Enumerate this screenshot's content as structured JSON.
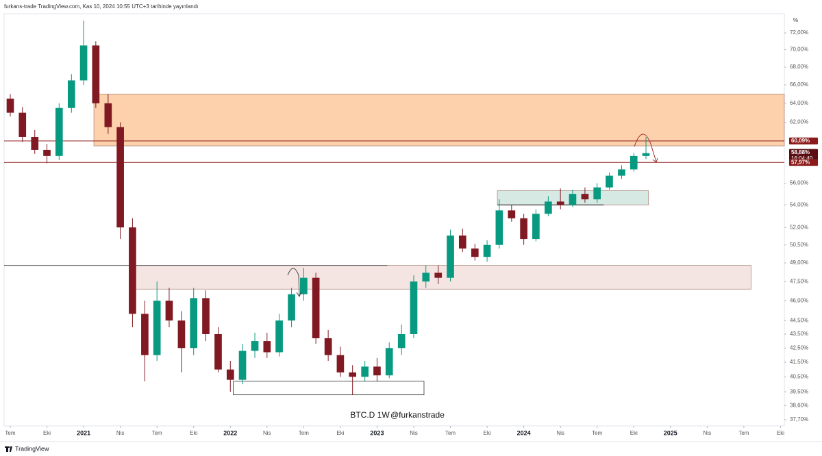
{
  "chart_data": {
    "type": "candlestick",
    "header": "furkans-trade TradingView.com, Kas 10, 2024 10:55 UTC+3 tarihinde yayınlandı",
    "title": "BTC.D 1W",
    "author": "@furkanstrade",
    "brand": "TradingView",
    "unit_label": "%",
    "log_scale": true,
    "grid": false,
    "up_color": "#089981",
    "down_color": "#801922",
    "xlim": [
      2020.458,
      2025.776
    ],
    "ylim": [
      37.31,
      74.35
    ],
    "xticks": [
      {
        "value": 2020.5,
        "label": "Tem"
      },
      {
        "value": 2020.75,
        "label": "Eki"
      },
      2021,
      {
        "value": 2021.25,
        "label": "Nis"
      },
      {
        "value": 2021.5,
        "label": "Tem"
      },
      {
        "value": 2021.75,
        "label": "Eki"
      },
      2022,
      {
        "value": 2022.25,
        "label": "Nis"
      },
      {
        "value": 2022.5,
        "label": "Tem"
      },
      {
        "value": 2022.75,
        "label": "Eki"
      },
      2023,
      {
        "value": 2023.25,
        "label": "Nis"
      },
      {
        "value": 2023.5,
        "label": "Tem"
      },
      {
        "value": 2023.75,
        "label": "Eki"
      },
      2024,
      {
        "value": 2024.25,
        "label": "Nis"
      },
      {
        "value": 2024.5,
        "label": "Tem"
      },
      {
        "value": 2024.75,
        "label": "Eki"
      },
      2025,
      {
        "value": 2025.25,
        "label": "Nis"
      },
      {
        "value": 2025.5,
        "label": "Tem"
      },
      {
        "value": 2025.75,
        "label": "Eki"
      }
    ],
    "yticks": [
      {
        "value": 72,
        "label": "72,00%"
      },
      {
        "value": 70,
        "label": "70,00%"
      },
      {
        "value": 68,
        "label": "68,00%"
      },
      {
        "value": 66,
        "label": "66,00%"
      },
      {
        "value": 64,
        "label": "64,00%"
      },
      {
        "value": 62,
        "label": "62,00%"
      },
      {
        "value": 56,
        "label": "56,00%"
      },
      {
        "value": 54,
        "label": "54,00%"
      },
      {
        "value": 52,
        "label": "52,00%"
      },
      {
        "value": 50.5,
        "label": "50,50%"
      },
      {
        "value": 49,
        "label": "49,00%"
      },
      {
        "value": 47.5,
        "label": "47,50%"
      },
      {
        "value": 46,
        "label": "46,00%"
      },
      {
        "value": 44.5,
        "label": "44,50%"
      },
      {
        "value": 43.5,
        "label": "43,50%"
      },
      {
        "value": 42.5,
        "label": "42,50%"
      },
      {
        "value": 41.5,
        "label": "41,50%"
      },
      {
        "value": 40.5,
        "label": "40,50%"
      },
      {
        "value": 39.5,
        "label": "39,50%"
      },
      {
        "value": 38.6,
        "label": "38,60%"
      },
      {
        "value": 37.7,
        "label": "37,70%"
      }
    ],
    "x": [
      2020.5,
      2020.583,
      2020.667,
      2020.75,
      2020.833,
      2020.917,
      2021.0,
      2021.083,
      2021.167,
      2021.25,
      2021.333,
      2021.417,
      2021.5,
      2021.583,
      2021.667,
      2021.75,
      2021.833,
      2021.917,
      2022.0,
      2022.083,
      2022.167,
      2022.25,
      2022.333,
      2022.417,
      2022.5,
      2022.583,
      2022.667,
      2022.75,
      2022.833,
      2022.917,
      2023.0,
      2023.083,
      2023.167,
      2023.25,
      2023.333,
      2023.417,
      2023.5,
      2023.583,
      2023.667,
      2023.75,
      2023.833,
      2023.917,
      2024.0,
      2024.083,
      2024.167,
      2024.25,
      2024.333,
      2024.417,
      2024.5,
      2024.583,
      2024.667,
      2024.75,
      2024.833
    ],
    "open": [
      64.5,
      63.0,
      60.5,
      59.2,
      58.6,
      63.5,
      66.5,
      70.5,
      64.0,
      61.5,
      52.0,
      45.0,
      42.0,
      46.0,
      44.5,
      42.5,
      46.2,
      43.5,
      41.0,
      40.3,
      42.3,
      43.0,
      42.2,
      44.5,
      46.5,
      47.8,
      43.2,
      42.0,
      40.8,
      40.5,
      41.2,
      40.6,
      42.5,
      43.5,
      47.5,
      48.2,
      47.8,
      51.3,
      50.2,
      49.5,
      50.5,
      53.5,
      52.8,
      51.0,
      53.2,
      54.3,
      54.0,
      55.0,
      54.5,
      55.6,
      56.7,
      57.3,
      58.6
    ],
    "high": [
      65.0,
      63.6,
      61.2,
      59.8,
      64.0,
      67.2,
      73.5,
      71.0,
      65.0,
      62.0,
      52.8,
      46.0,
      47.5,
      47.0,
      45.2,
      47.0,
      46.8,
      44.0,
      41.6,
      42.8,
      43.6,
      43.6,
      45.0,
      47.0,
      48.6,
      48.2,
      43.8,
      42.6,
      41.3,
      41.6,
      41.8,
      42.9,
      44.2,
      48.0,
      48.8,
      48.8,
      51.8,
      51.9,
      50.6,
      50.9,
      54.5,
      54.0,
      53.2,
      53.6,
      54.8,
      55.5,
      55.4,
      55.6,
      56.0,
      57.0,
      57.7,
      58.9,
      60.5
    ],
    "low": [
      62.6,
      60.0,
      58.8,
      57.9,
      58.2,
      63.0,
      66.0,
      63.5,
      60.8,
      51.0,
      44.0,
      40.2,
      41.6,
      44.0,
      40.8,
      42.0,
      43.0,
      40.8,
      39.5,
      40.0,
      41.8,
      41.8,
      41.9,
      44.0,
      46.0,
      42.8,
      41.6,
      40.5,
      39.3,
      40.2,
      40.2,
      40.4,
      42.0,
      43.2,
      47.0,
      47.3,
      47.5,
      49.9,
      49.2,
      49.1,
      50.2,
      52.5,
      50.5,
      50.8,
      53.0,
      53.6,
      53.8,
      54.2,
      54.2,
      55.4,
      56.4,
      57.1,
      58.3
    ],
    "close": [
      63.0,
      60.5,
      59.2,
      58.6,
      63.5,
      66.5,
      70.5,
      64.0,
      61.5,
      52.0,
      45.0,
      42.0,
      46.0,
      44.5,
      42.5,
      46.2,
      43.5,
      41.0,
      40.3,
      42.3,
      43.0,
      42.2,
      44.5,
      46.5,
      47.8,
      43.2,
      42.0,
      40.8,
      40.5,
      41.2,
      40.6,
      42.5,
      43.5,
      47.5,
      48.2,
      47.8,
      51.3,
      50.2,
      49.5,
      50.5,
      53.5,
      52.8,
      51.0,
      53.2,
      54.3,
      54.0,
      55.0,
      54.5,
      55.6,
      56.7,
      57.3,
      58.6,
      58.88
    ],
    "zones": [
      {
        "x": [
          2021.07,
          2025.776
        ],
        "y": [
          59.6,
          65.0
        ],
        "color": "#fbc99c"
      },
      {
        "x": [
          2021.31,
          2025.55
        ],
        "y": [
          46.9,
          48.8
        ],
        "color": "#f2e1de"
      },
      {
        "x": [
          2023.82,
          2024.85
        ],
        "y": [
          54.0,
          55.3
        ],
        "color": "#cfe5dd"
      },
      {
        "x": [
          2022.02,
          2023.32
        ],
        "y": [
          39.3,
          40.2
        ],
        "color": "none"
      }
    ],
    "lines": [
      {
        "value": 60.09,
        "x": [
          2020.458,
          2025.776
        ],
        "color": "#8b1a1a"
      },
      {
        "value": 57.97,
        "x": [
          2020.458,
          2025.776
        ],
        "color": "#8b1a1a"
      },
      {
        "value": 48.8,
        "x": [
          2020.458,
          2023.07
        ],
        "color": "#555555"
      },
      {
        "value": 54.0,
        "x": [
          2023.82,
          2024.545
        ],
        "color": "#222222"
      }
    ],
    "price_labels": [
      {
        "value": 60.09,
        "label": "60,09%",
        "color": "#8b1a1a"
      },
      {
        "value": 58.88,
        "label": "58,88%",
        "color": "#5a0d12"
      },
      {
        "value": 57.97,
        "label": "57,97%",
        "color": "#8b1a1a"
      }
    ],
    "countdown": "16:04:40"
  }
}
